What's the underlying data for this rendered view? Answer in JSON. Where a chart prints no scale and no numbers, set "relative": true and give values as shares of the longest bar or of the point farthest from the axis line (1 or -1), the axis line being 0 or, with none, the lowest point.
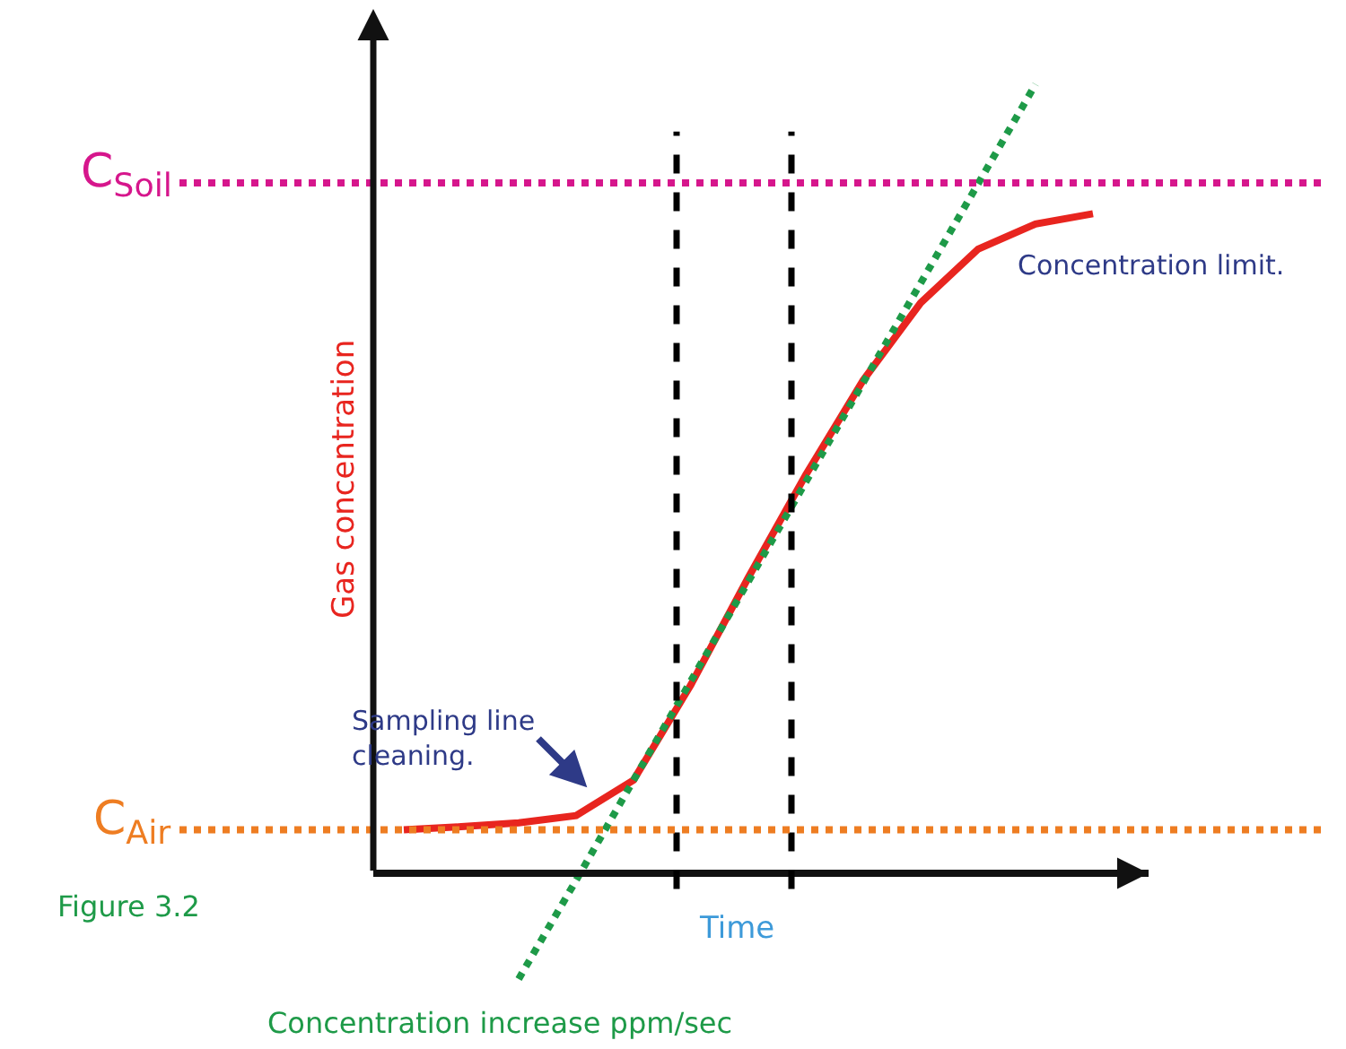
{
  "chart_data": {
    "type": "line",
    "relative": true,
    "xlabel": "Time",
    "ylabel": "Gas concentration",
    "categories": [
      null,
      null,
      null,
      null,
      null,
      null,
      null,
      null,
      null,
      null,
      null,
      null,
      null
    ],
    "marker": "none",
    "series": [
      {
        "color": "#e8251f",
        "line_style": "solid",
        "values": [
          0.055,
          0.059,
          0.064,
          0.073,
          0.118,
          0.239,
          0.375,
          0.505,
          0.625,
          0.723,
          0.791,
          0.823,
          0.836
        ]
      },
      {
        "color": "#1e9a48",
        "line_style": "dotted",
        "values": [
          null,
          null,
          -0.134,
          -0.009,
          0.118,
          0.244,
          0.37,
          0.496,
          0.622,
          0.748,
          0.874,
          1.0,
          null
        ]
      }
    ],
    "ref_lines": [
      {
        "axis": "y",
        "value": 0.875,
        "label": "C$_{Soil}$",
        "color": "#d6168c",
        "line_style": "dotted"
      },
      {
        "axis": "y",
        "value": 0.055,
        "label": "C$_{Air}$",
        "color": "#ee7d22",
        "line_style": "dotted"
      }
    ],
    "annotations": [
      "Concentration limit.",
      "Sampling line cleaning.",
      "Concentration increase ppm/sec",
      "Figure 3.2"
    ]
  }
}
